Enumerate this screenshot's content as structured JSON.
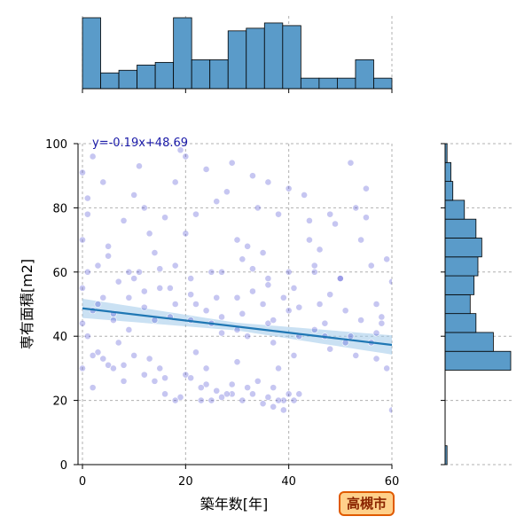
{
  "chart_data": {
    "type": "scatter",
    "xlabel": "築年数[年]",
    "ylabel": "専有面積[m2]",
    "xlim": [
      0,
      60
    ],
    "ylim": [
      0,
      100
    ],
    "xticks": [
      0,
      20,
      40,
      60
    ],
    "yticks": [
      0,
      20,
      40,
      60,
      80,
      100
    ],
    "grid": true,
    "regression": {
      "slope": -0.19,
      "intercept": 48.69,
      "label": "y=-0.19x+48.69"
    },
    "badge": "高槻市",
    "colors": {
      "points": "#3333cc",
      "line": "#1f77b4",
      "band": "#9ec9ea",
      "hist": "#5a9bc9",
      "badge_fill": "#ffd08a",
      "badge_border": "#e05a00"
    },
    "x_histogram": {
      "range": [
        0,
        60
      ],
      "bins": 17,
      "counts": [
        27,
        6,
        7,
        9,
        10,
        27,
        11,
        11,
        22,
        23,
        25,
        24,
        4,
        4,
        4,
        11,
        4
      ]
    },
    "y_histogram": {
      "range": [
        0,
        100
      ],
      "bins": 17,
      "counts": [
        1,
        0,
        0,
        0,
        0,
        34,
        25,
        16,
        13,
        15,
        17,
        19,
        16,
        10,
        4,
        3,
        1
      ]
    },
    "points": [
      [
        0,
        91
      ],
      [
        1,
        83
      ],
      [
        0,
        70
      ],
      [
        1,
        60
      ],
      [
        0,
        55
      ],
      [
        2,
        48
      ],
      [
        0,
        44
      ],
      [
        1,
        40
      ],
      [
        3,
        35
      ],
      [
        0,
        30
      ],
      [
        2,
        24
      ],
      [
        4,
        88
      ],
      [
        5,
        65
      ],
      [
        4,
        52
      ],
      [
        6,
        45
      ],
      [
        7,
        38
      ],
      [
        5,
        31
      ],
      [
        8,
        26
      ],
      [
        9,
        60
      ],
      [
        10,
        58
      ],
      [
        11,
        93
      ],
      [
        12,
        80
      ],
      [
        13,
        72
      ],
      [
        12,
        49
      ],
      [
        14,
        45
      ],
      [
        13,
        33
      ],
      [
        15,
        30
      ],
      [
        14,
        26
      ],
      [
        16,
        22
      ],
      [
        17,
        55
      ],
      [
        18,
        62
      ],
      [
        19,
        98
      ],
      [
        20,
        96
      ],
      [
        20,
        72
      ],
      [
        21,
        58
      ],
      [
        22,
        50
      ],
      [
        21,
        45
      ],
      [
        22,
        35
      ],
      [
        20,
        28
      ],
      [
        19,
        21
      ],
      [
        18,
        20
      ],
      [
        23,
        20
      ],
      [
        24,
        30
      ],
      [
        25,
        44
      ],
      [
        26,
        52
      ],
      [
        27,
        60
      ],
      [
        28,
        85
      ],
      [
        29,
        94
      ],
      [
        30,
        70
      ],
      [
        31,
        64
      ],
      [
        30,
        52
      ],
      [
        31,
        47
      ],
      [
        32,
        40
      ],
      [
        30,
        32
      ],
      [
        29,
        22
      ],
      [
        31,
        20
      ],
      [
        33,
        90
      ],
      [
        34,
        80
      ],
      [
        35,
        66
      ],
      [
        36,
        58
      ],
      [
        35,
        50
      ],
      [
        36,
        44
      ],
      [
        37,
        38
      ],
      [
        38,
        30
      ],
      [
        37,
        24
      ],
      [
        39,
        20
      ],
      [
        40,
        60
      ],
      [
        41,
        55
      ],
      [
        40,
        48
      ],
      [
        42,
        40
      ],
      [
        41,
        34
      ],
      [
        40,
        22
      ],
      [
        39,
        17
      ],
      [
        38,
        20
      ],
      [
        43,
        84
      ],
      [
        44,
        70
      ],
      [
        45,
        62
      ],
      [
        46,
        50
      ],
      [
        47,
        44
      ],
      [
        48,
        36
      ],
      [
        49,
        75
      ],
      [
        50,
        58
      ],
      [
        51,
        48
      ],
      [
        52,
        40
      ],
      [
        53,
        34
      ],
      [
        55,
        86
      ],
      [
        54,
        70
      ],
      [
        56,
        62
      ],
      [
        57,
        50
      ],
      [
        58,
        44
      ],
      [
        56,
        38
      ],
      [
        57,
        33
      ],
      [
        59,
        30
      ],
      [
        60,
        57
      ],
      [
        58,
        46
      ],
      [
        60,
        17
      ],
      [
        2,
        34
      ],
      [
        4,
        33
      ],
      [
        6,
        30
      ],
      [
        8,
        31
      ],
      [
        10,
        34
      ],
      [
        12,
        28
      ],
      [
        16,
        27
      ],
      [
        24,
        25
      ],
      [
        26,
        23
      ],
      [
        28,
        22
      ],
      [
        32,
        24
      ],
      [
        34,
        26
      ],
      [
        36,
        21
      ],
      [
        3,
        62
      ],
      [
        7,
        57
      ],
      [
        11,
        60
      ],
      [
        15,
        61
      ],
      [
        25,
        60
      ],
      [
        33,
        61
      ],
      [
        45,
        60
      ],
      [
        50,
        58
      ],
      [
        9,
        42
      ],
      [
        17,
        46
      ],
      [
        27,
        41
      ],
      [
        37,
        45
      ],
      [
        47,
        40
      ],
      [
        21,
        27
      ],
      [
        23,
        24
      ],
      [
        25,
        20
      ],
      [
        27,
        21
      ],
      [
        29,
        25
      ],
      [
        33,
        22
      ],
      [
        35,
        19
      ],
      [
        37,
        18
      ],
      [
        41,
        20
      ],
      [
        42,
        22
      ],
      [
        3,
        50
      ],
      [
        6,
        47
      ],
      [
        9,
        52
      ],
      [
        12,
        54
      ],
      [
        15,
        55
      ],
      [
        18,
        50
      ],
      [
        21,
        53
      ],
      [
        24,
        48
      ],
      [
        27,
        46
      ],
      [
        30,
        42
      ],
      [
        33,
        54
      ],
      [
        36,
        56
      ],
      [
        39,
        52
      ],
      [
        42,
        49
      ],
      [
        45,
        42
      ],
      [
        48,
        53
      ],
      [
        51,
        38
      ],
      [
        54,
        45
      ],
      [
        57,
        41
      ],
      [
        1,
        78
      ],
      [
        5,
        68
      ],
      [
        8,
        76
      ],
      [
        14,
        66
      ],
      [
        16,
        77
      ],
      [
        22,
        78
      ],
      [
        26,
        82
      ],
      [
        32,
        68
      ],
      [
        38,
        78
      ],
      [
        44,
        76
      ],
      [
        46,
        67
      ],
      [
        53,
        80
      ],
      [
        55,
        77
      ],
      [
        59,
        64
      ],
      [
        2,
        96
      ],
      [
        10,
        84
      ],
      [
        18,
        88
      ],
      [
        24,
        92
      ],
      [
        36,
        88
      ],
      [
        40,
        86
      ],
      [
        48,
        78
      ],
      [
        52,
        94
      ]
    ]
  }
}
